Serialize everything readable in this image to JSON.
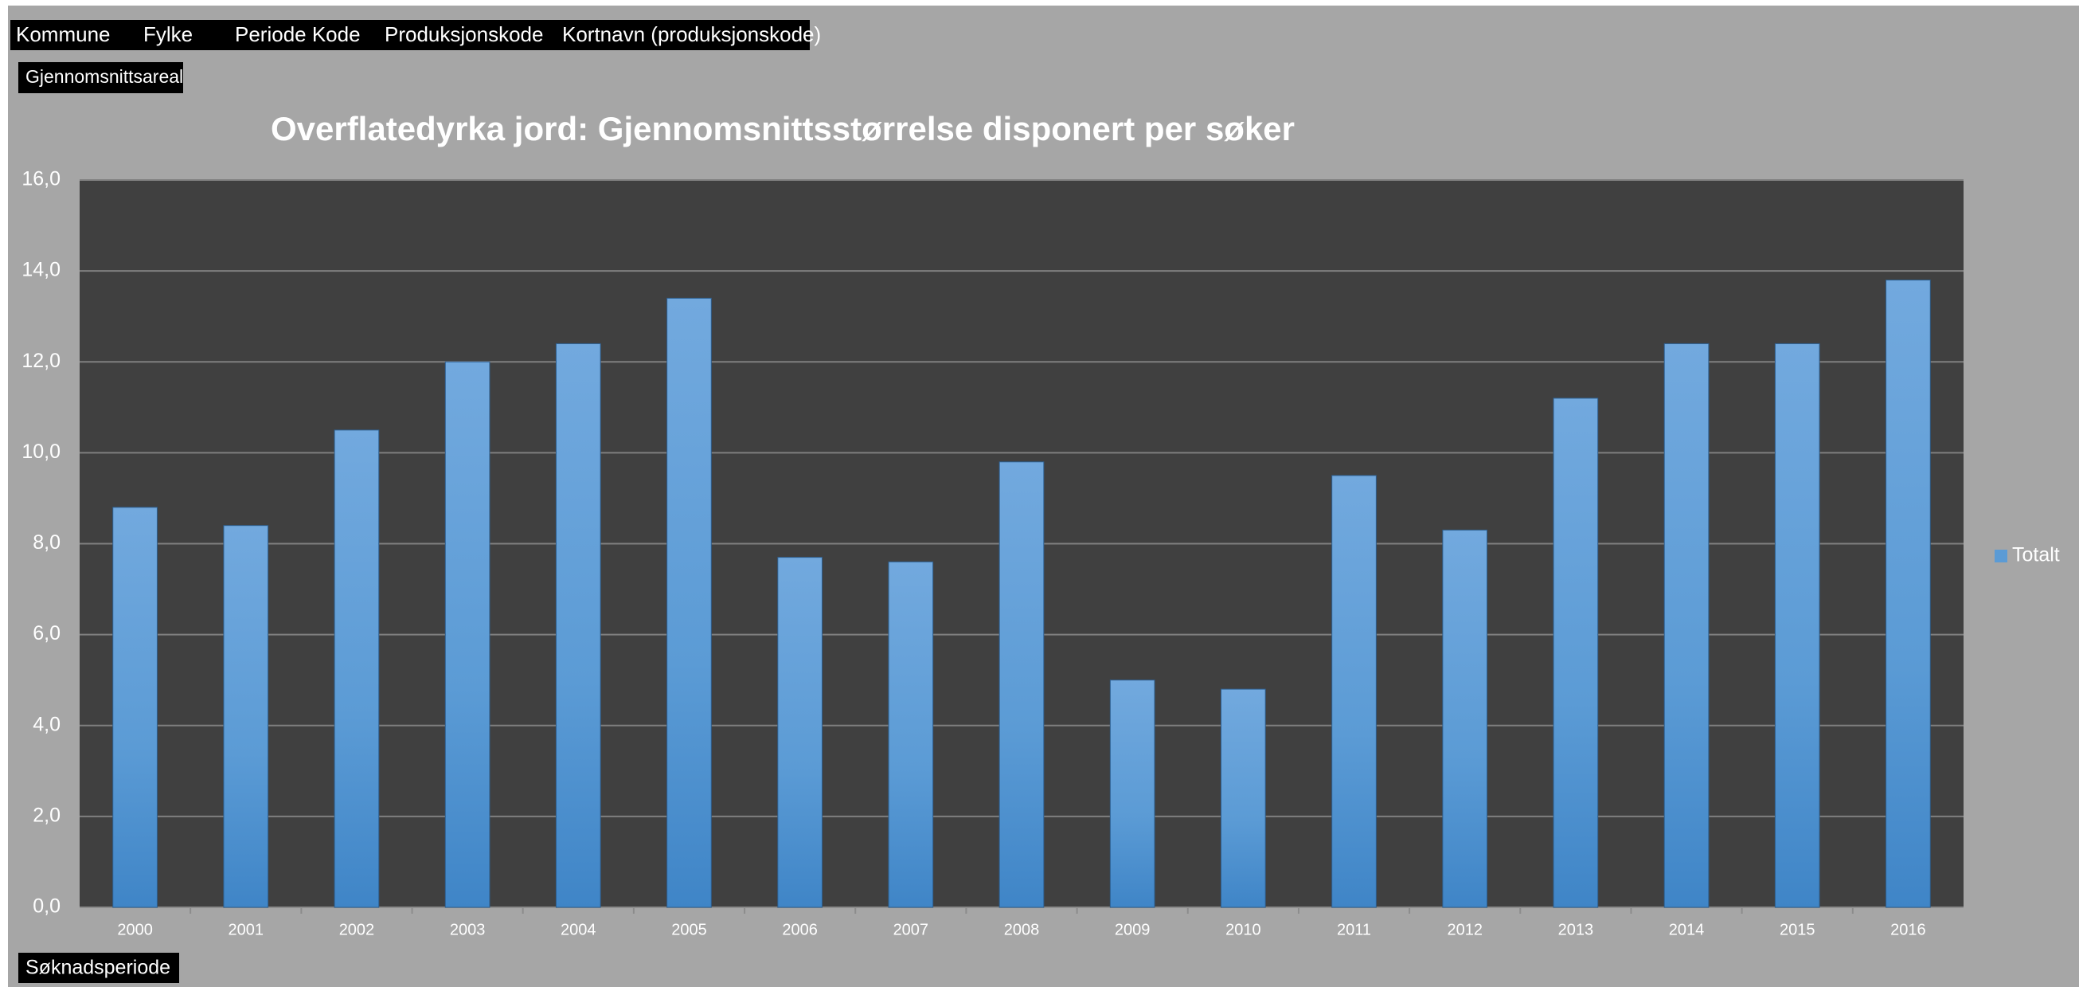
{
  "chart_data": {
    "type": "bar",
    "title": "Overflatedyrka jord: Gjennomsnittsstørrelse disponert per søker",
    "filter_fields": [
      "Kommune",
      "Fylke",
      "Periode Kode",
      "Produksjonskode",
      "Kortnavn (produksjonskode)"
    ],
    "value_field": "Gjennomsnittsareal",
    "axis_field": "Søknadsperiode",
    "categories": [
      "2000",
      "2001",
      "2002",
      "2003",
      "2004",
      "2005",
      "2006",
      "2007",
      "2008",
      "2009",
      "2010",
      "2011",
      "2012",
      "2013",
      "2014",
      "2015",
      "2016"
    ],
    "series": [
      {
        "name": "Totalt",
        "color": "#5b9bd5",
        "values": [
          8.8,
          8.4,
          10.5,
          12.0,
          12.4,
          13.4,
          7.7,
          7.6,
          9.8,
          5.0,
          4.8,
          9.5,
          8.3,
          11.2,
          12.4,
          12.4,
          13.8
        ]
      }
    ],
    "ylim": [
      0,
      16
    ],
    "yticks": [
      {
        "value": 0,
        "label": "0,0"
      },
      {
        "value": 2,
        "label": "2,0"
      },
      {
        "value": 4,
        "label": "4,0"
      },
      {
        "value": 6,
        "label": "6,0"
      },
      {
        "value": 8,
        "label": "8,0"
      },
      {
        "value": 10,
        "label": "10,0"
      },
      {
        "value": 12,
        "label": "12,0"
      },
      {
        "value": 14,
        "label": "14,0"
      },
      {
        "value": 16,
        "label": "16,0"
      }
    ],
    "grid": true,
    "legend": "right"
  }
}
